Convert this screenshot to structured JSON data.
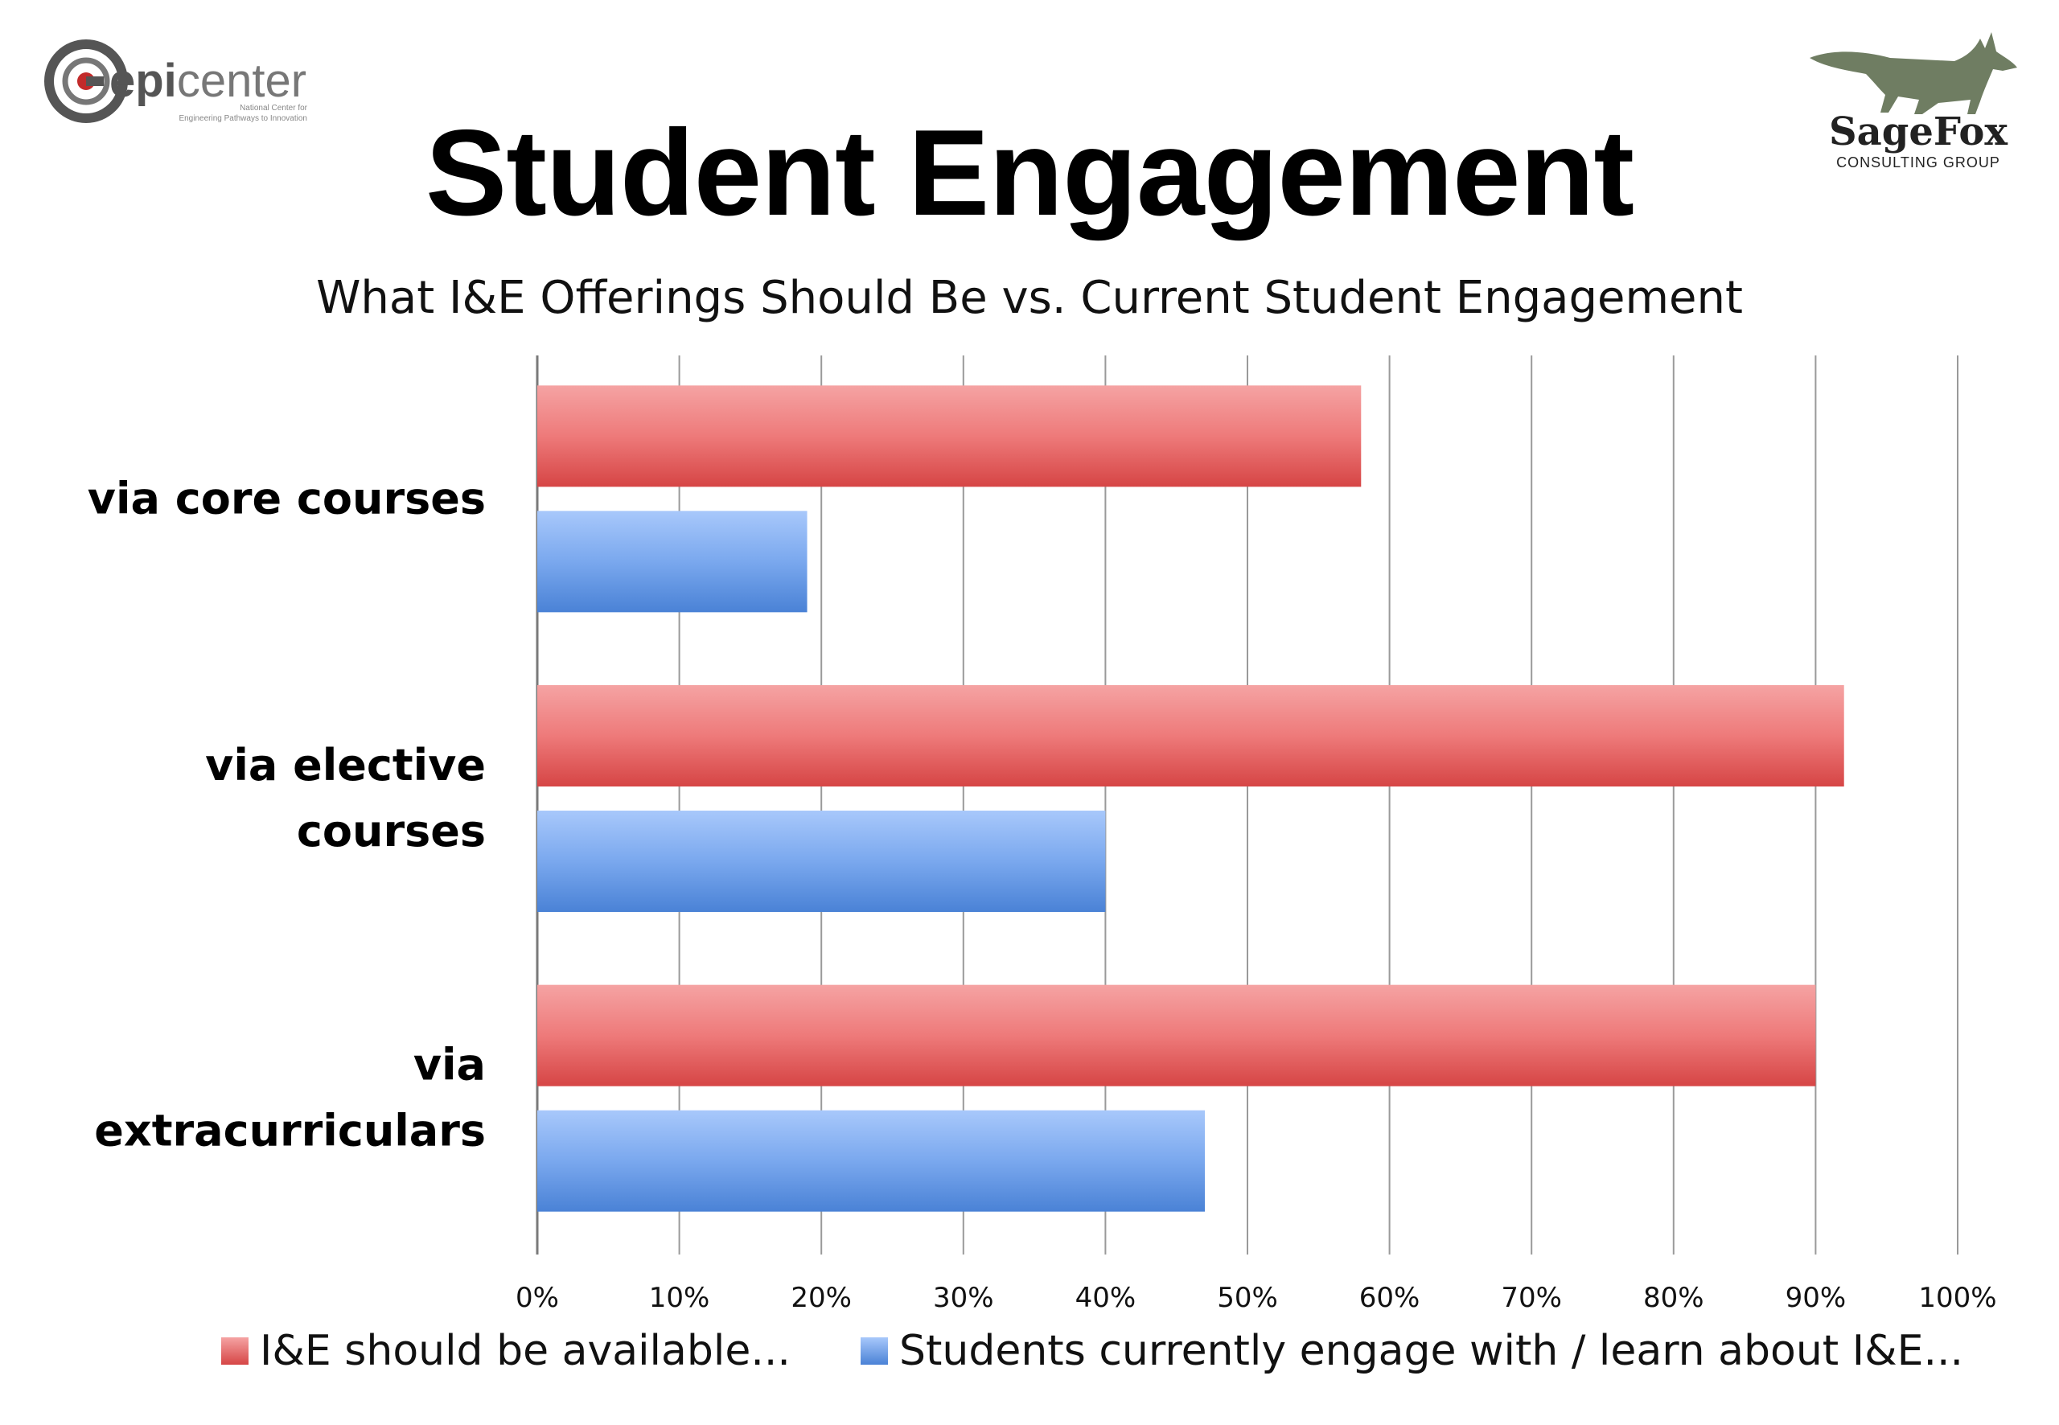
{
  "header": {
    "title": "Student Engagement",
    "subtitle": "What I&E Offerings Should Be vs. Current Student Engagement"
  },
  "logos": {
    "left": {
      "name": "epicenter",
      "name_prefix": "epi",
      "name_suffix": "center",
      "tagline_1": "National Center for",
      "tagline_2": "Engineering Pathways to Innovation"
    },
    "right": {
      "name": "SageFox",
      "tagline": "CONSULTING GROUP"
    }
  },
  "colors": {
    "red_series": "#e05a5a",
    "blue_series": "#5b93e6",
    "grid": "#9a9a9a"
  },
  "chart_data": {
    "type": "bar",
    "orientation": "horizontal",
    "categories": [
      "via core courses",
      "via elective courses",
      "via extracurriculars"
    ],
    "category_lines": [
      [
        "via core courses"
      ],
      [
        "via elective",
        "courses"
      ],
      [
        "via",
        "extracurriculars"
      ]
    ],
    "series": [
      {
        "name": "I&E should be available...",
        "values": [
          58,
          92,
          90
        ]
      },
      {
        "name": "Students currently engage with / learn about I&E...",
        "values": [
          19,
          40,
          47
        ]
      }
    ],
    "xlim": [
      0,
      100
    ],
    "xticks": [
      "0%",
      "10%",
      "20%",
      "30%",
      "40%",
      "50%",
      "60%",
      "70%",
      "80%",
      "90%",
      "100%"
    ],
    "title": "What I&E Offerings Should Be vs. Current Student Engagement",
    "grid": true,
    "legend_position": "bottom"
  }
}
